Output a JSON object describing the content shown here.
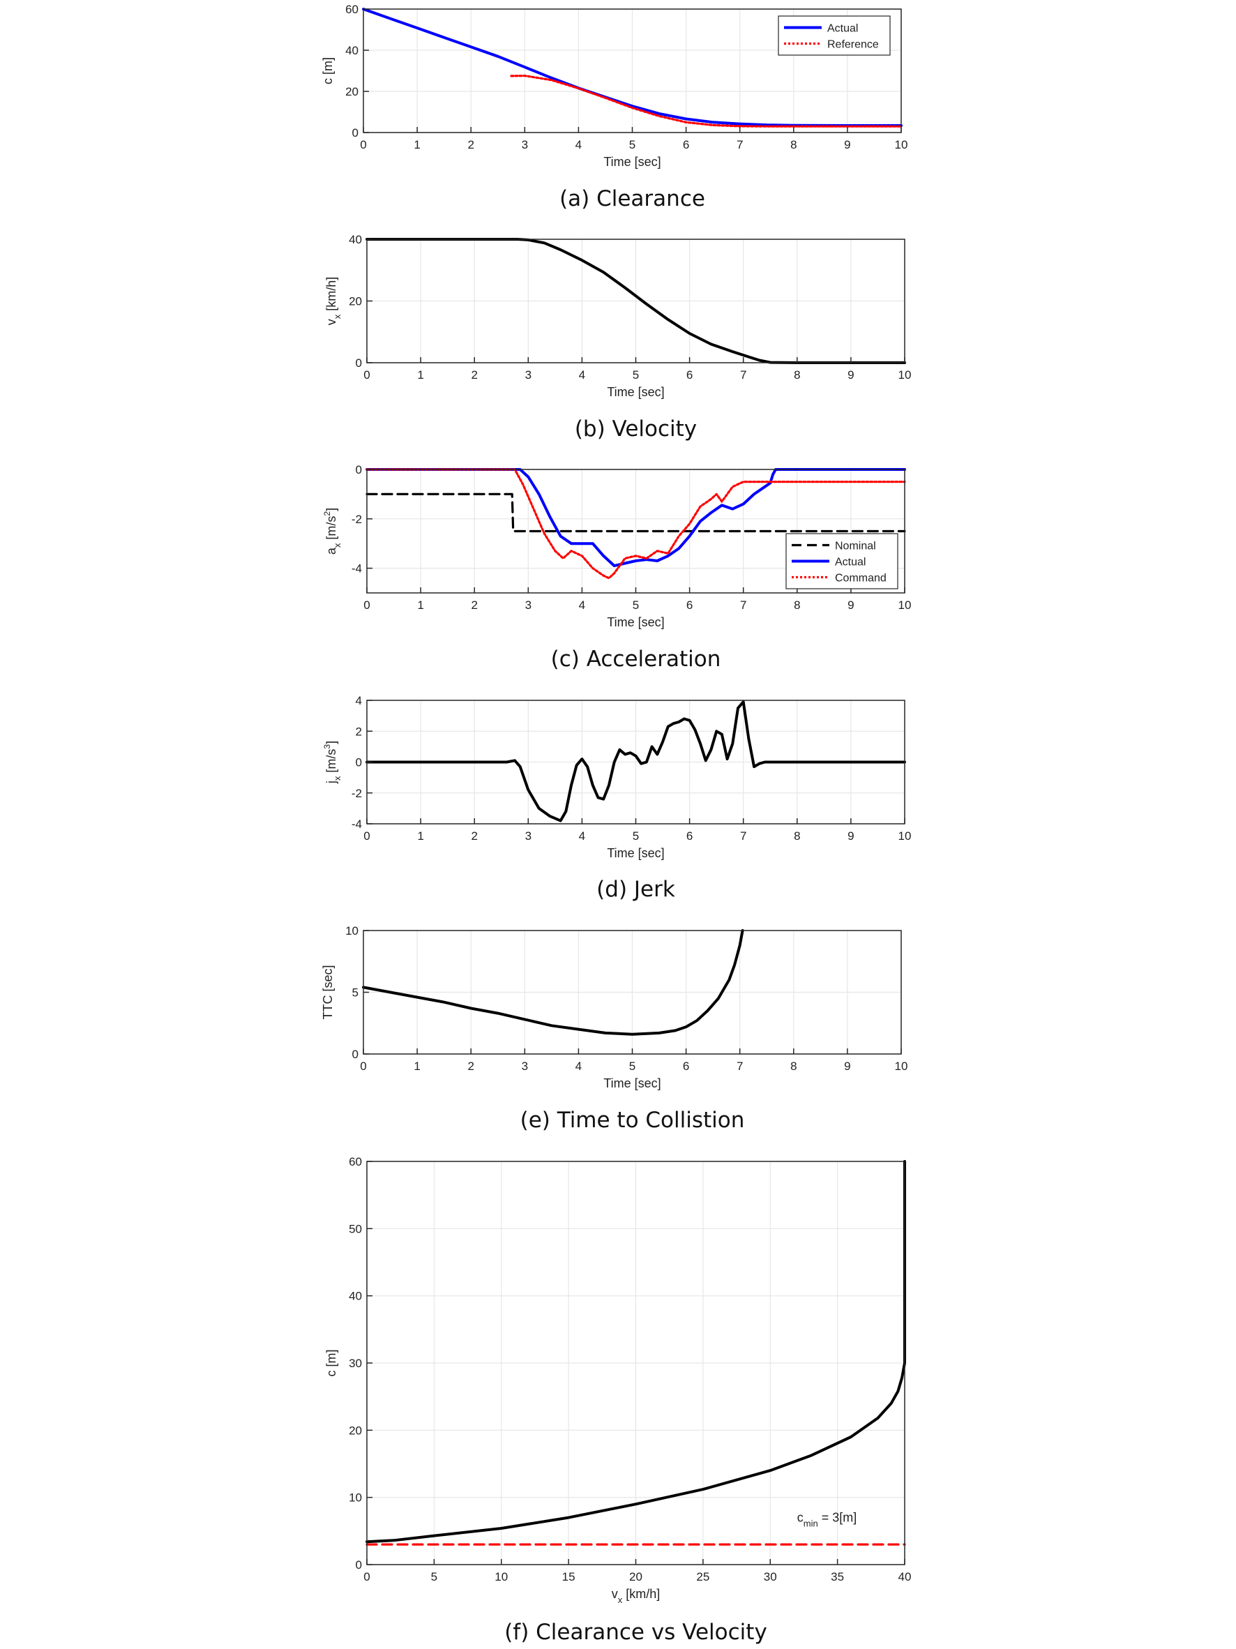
{
  "chart_data": [
    {
      "id": "a",
      "type": "line",
      "caption": "(a) Clearance",
      "xlabel": "Time [sec]",
      "ylabel": "c [m]",
      "xlim": [
        0,
        10
      ],
      "ylim": [
        0,
        60
      ],
      "xticks": [
        0,
        1,
        2,
        3,
        4,
        5,
        6,
        7,
        8,
        9,
        10
      ],
      "yticks": [
        0,
        20,
        40,
        60
      ],
      "grid": true,
      "legend": "top-right",
      "series": [
        {
          "name": "Actual",
          "color": "#0000ff",
          "style": "solid",
          "x": [
            0,
            0.5,
            1,
            1.5,
            2,
            2.5,
            3,
            3.5,
            4,
            4.5,
            5,
            5.5,
            6,
            6.5,
            7,
            7.5,
            8,
            9,
            10
          ],
          "y": [
            60,
            55.4,
            50.8,
            46.2,
            41.6,
            37.0,
            31.8,
            26.5,
            21.6,
            17.2,
            12.8,
            9.2,
            6.6,
            5.0,
            4.2,
            3.7,
            3.5,
            3.4,
            3.4
          ]
        },
        {
          "name": "Reference",
          "color": "#ff0000",
          "style": "dotted",
          "x": [
            2.75,
            3,
            3.5,
            4,
            4.5,
            5,
            5.5,
            6,
            6.5,
            7,
            7.5,
            8,
            9,
            10
          ],
          "y": [
            27.5,
            27.6,
            25.5,
            21.5,
            16.8,
            12.0,
            8.0,
            5.0,
            3.6,
            3.1,
            3.0,
            3.0,
            3.0,
            3.0
          ]
        }
      ]
    },
    {
      "id": "b",
      "type": "line",
      "caption": "(b) Velocity",
      "xlabel": "Time [sec]",
      "ylabel": "v_x [km/h]",
      "ylabel_main": "v",
      "ylabel_sub": "x",
      "ylabel_unit": " [km/h]",
      "xlim": [
        0,
        10
      ],
      "ylim": [
        0,
        40
      ],
      "xticks": [
        0,
        1,
        2,
        3,
        4,
        5,
        6,
        7,
        8,
        9,
        10
      ],
      "yticks": [
        0,
        20,
        40
      ],
      "grid": true,
      "series": [
        {
          "color": "#000000",
          "style": "solid",
          "x": [
            0,
            2.8,
            3.0,
            3.3,
            3.6,
            4.0,
            4.4,
            4.8,
            5.2,
            5.6,
            6.0,
            6.4,
            6.8,
            7.1,
            7.3,
            7.5,
            8,
            9,
            10
          ],
          "y": [
            40,
            40,
            39.8,
            38.8,
            36.6,
            33.2,
            29.3,
            24.3,
            19.0,
            14.0,
            9.5,
            6.0,
            3.6,
            1.9,
            0.8,
            0.1,
            0,
            0,
            0
          ]
        }
      ]
    },
    {
      "id": "c",
      "type": "line",
      "caption": "(c) Acceleration",
      "xlabel": "Time [sec]",
      "ylabel": "a_x [m/s^2]",
      "ylabel_main": "a",
      "ylabel_sub": "x",
      "ylabel_unit": " [m/s",
      "ylabel_sup": "2",
      "ylabel_tail": "]",
      "xlim": [
        0,
        10
      ],
      "ylim": [
        -5,
        0
      ],
      "xticks": [
        0,
        1,
        2,
        3,
        4,
        5,
        6,
        7,
        8,
        9,
        10
      ],
      "yticks": [
        -4,
        -2,
        0
      ],
      "grid": true,
      "legend": "bottom-right",
      "series": [
        {
          "name": "Nominal",
          "color": "#000000",
          "style": "dashed",
          "x": [
            0,
            2.7,
            2.72,
            10
          ],
          "y": [
            -1,
            -1,
            -2.5,
            -2.5
          ]
        },
        {
          "name": "Actual",
          "color": "#0000ff",
          "style": "solid",
          "x": [
            0,
            2.75,
            2.85,
            3.0,
            3.2,
            3.4,
            3.6,
            3.8,
            4.0,
            4.2,
            4.4,
            4.6,
            4.8,
            5.0,
            5.2,
            5.4,
            5.6,
            5.8,
            6.0,
            6.2,
            6.4,
            6.6,
            6.8,
            7.0,
            7.2,
            7.4,
            7.5,
            7.55,
            7.6,
            8,
            10
          ],
          "y": [
            0,
            0,
            0,
            -0.3,
            -1.0,
            -1.9,
            -2.7,
            -3.0,
            -3.0,
            -3.0,
            -3.5,
            -3.9,
            -3.8,
            -3.7,
            -3.65,
            -3.7,
            -3.5,
            -3.2,
            -2.7,
            -2.1,
            -1.75,
            -1.45,
            -1.6,
            -1.4,
            -1.0,
            -0.7,
            -0.55,
            -0.2,
            0,
            0,
            0
          ]
        },
        {
          "name": "Command",
          "color": "#ff0000",
          "style": "dotted",
          "x": [
            0,
            2.75,
            2.9,
            3.1,
            3.3,
            3.5,
            3.65,
            3.8,
            4.0,
            4.2,
            4.4,
            4.5,
            4.6,
            4.8,
            5.0,
            5.2,
            5.4,
            5.6,
            5.8,
            6.0,
            6.2,
            6.4,
            6.5,
            6.6,
            6.8,
            7.0,
            7.5,
            8,
            10
          ],
          "y": [
            0,
            0,
            -0.6,
            -1.6,
            -2.6,
            -3.3,
            -3.6,
            -3.3,
            -3.5,
            -4.0,
            -4.3,
            -4.4,
            -4.2,
            -3.6,
            -3.5,
            -3.6,
            -3.3,
            -3.4,
            -2.7,
            -2.2,
            -1.5,
            -1.2,
            -1.0,
            -1.3,
            -0.7,
            -0.5,
            -0.5,
            -0.5,
            -0.5
          ]
        }
      ]
    },
    {
      "id": "d",
      "type": "line",
      "caption": "(d) Jerk",
      "xlabel": "Time [sec]",
      "ylabel": "j_x [m/s^3]",
      "ylabel_main": "j",
      "ylabel_sub": "x",
      "ylabel_unit": " [m/s",
      "ylabel_sup": "3",
      "ylabel_tail": "]",
      "xlim": [
        0,
        10
      ],
      "ylim": [
        -4,
        4
      ],
      "xticks": [
        0,
        1,
        2,
        3,
        4,
        5,
        6,
        7,
        8,
        9,
        10
      ],
      "yticks": [
        -4,
        -2,
        0,
        2,
        4
      ],
      "grid": true,
      "series": [
        {
          "color": "#000000",
          "style": "solid",
          "x": [
            0,
            2.6,
            2.75,
            2.85,
            3.0,
            3.2,
            3.4,
            3.6,
            3.7,
            3.8,
            3.9,
            4.0,
            4.1,
            4.2,
            4.3,
            4.4,
            4.5,
            4.6,
            4.7,
            4.8,
            4.9,
            5.0,
            5.1,
            5.2,
            5.3,
            5.4,
            5.5,
            5.6,
            5.7,
            5.8,
            5.9,
            6.0,
            6.1,
            6.2,
            6.3,
            6.4,
            6.5,
            6.6,
            6.7,
            6.8,
            6.9,
            7.0,
            7.1,
            7.2,
            7.3,
            7.4,
            7.5,
            7.6,
            7.7,
            7.75,
            7.8,
            7.9,
            8,
            10
          ],
          "y": [
            0,
            0,
            0.1,
            -0.3,
            -1.8,
            -3.0,
            -3.5,
            -3.8,
            -3.2,
            -1.5,
            -0.2,
            0.2,
            -0.3,
            -1.5,
            -2.3,
            -2.4,
            -1.5,
            0.0,
            0.8,
            0.5,
            0.6,
            0.4,
            -0.1,
            0.0,
            1.0,
            0.5,
            1.3,
            2.3,
            2.5,
            2.6,
            2.8,
            2.7,
            2.1,
            1.2,
            0.1,
            0.8,
            2.0,
            1.8,
            0.2,
            1.2,
            3.5,
            3.9,
            1.5,
            -0.3,
            -0.1,
            0,
            0,
            0,
            0,
            0,
            0,
            0,
            0,
            0
          ]
        }
      ]
    },
    {
      "id": "e",
      "type": "line",
      "caption": "(e) Time to Collistion",
      "xlabel": "Time [sec]",
      "ylabel": "TTC [sec]",
      "xlim": [
        0,
        10
      ],
      "ylim": [
        0,
        10
      ],
      "xticks": [
        0,
        1,
        2,
        3,
        4,
        5,
        6,
        7,
        8,
        9,
        10
      ],
      "yticks": [
        0,
        5,
        10
      ],
      "grid": true,
      "series": [
        {
          "color": "#000000",
          "style": "solid",
          "x": [
            0,
            0.5,
            1,
            1.5,
            2,
            2.5,
            3,
            3.5,
            4,
            4.5,
            5,
            5.5,
            5.8,
            6.0,
            6.2,
            6.4,
            6.6,
            6.8,
            6.9,
            7.0,
            7.05
          ],
          "y": [
            5.4,
            5.0,
            4.6,
            4.2,
            3.7,
            3.3,
            2.8,
            2.3,
            2.0,
            1.7,
            1.6,
            1.7,
            1.9,
            2.2,
            2.7,
            3.5,
            4.5,
            6.0,
            7.2,
            8.8,
            10
          ]
        }
      ]
    },
    {
      "id": "f",
      "type": "line",
      "caption": "(f) Clearance vs Velocity",
      "xlabel": "v_x [km/h]",
      "xlabel_main": "v",
      "xlabel_sub": "x",
      "xlabel_unit": " [km/h]",
      "ylabel": "c [m]",
      "xlim": [
        0,
        40
      ],
      "ylim": [
        0,
        60
      ],
      "xticks": [
        0,
        5,
        10,
        15,
        20,
        25,
        30,
        35,
        40
      ],
      "yticks": [
        0,
        10,
        20,
        30,
        40,
        50,
        60
      ],
      "grid": true,
      "annotation": {
        "main": "c",
        "sub": "min",
        "tail": " = 3[m]"
      },
      "series": [
        {
          "color": "#000000",
          "style": "solid",
          "x": [
            0,
            2,
            5,
            10,
            15,
            20,
            25,
            30,
            33,
            36,
            38,
            39,
            39.5,
            39.8,
            40,
            40
          ],
          "y": [
            3.4,
            3.6,
            4.3,
            5.4,
            7.0,
            9.0,
            11.2,
            14.0,
            16.2,
            19.0,
            21.8,
            24.0,
            25.8,
            27.8,
            30.0,
            60
          ]
        },
        {
          "color": "#ff0000",
          "style": "dashed",
          "x": [
            0,
            40
          ],
          "y": [
            3,
            3
          ]
        }
      ]
    }
  ]
}
